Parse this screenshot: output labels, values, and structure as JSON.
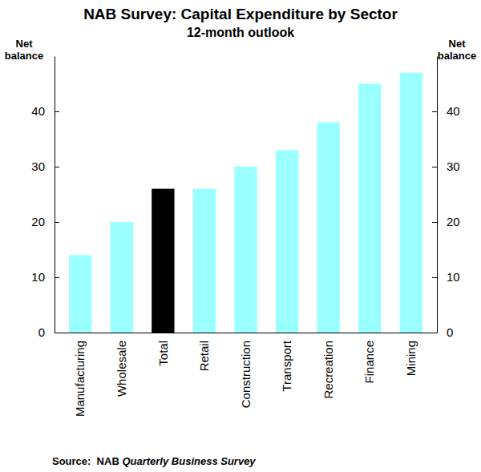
{
  "chart_data": {
    "type": "bar",
    "title": "NAB Survey: Capital Expenditure by Sector",
    "subtitle": "12-month outlook",
    "y_label": "Net balance",
    "categories": [
      "Manufacturing",
      "Wholesale",
      "Total",
      "Retail",
      "Construction",
      "Transport",
      "Recreation",
      "Finance",
      "Mining"
    ],
    "values": [
      14,
      20,
      26,
      26,
      30,
      33,
      38,
      45,
      47
    ],
    "colors": [
      "#99ffff",
      "#99ffff",
      "#000000",
      "#99ffff",
      "#99ffff",
      "#99ffff",
      "#99ffff",
      "#99ffff",
      "#99ffff"
    ],
    "ylim": [
      0,
      50
    ],
    "yticks": [
      0,
      10,
      20,
      30,
      40
    ],
    "grid": false,
    "source": "Source:  NAB",
    "source_publication": "Quarterly Business Survey"
  }
}
